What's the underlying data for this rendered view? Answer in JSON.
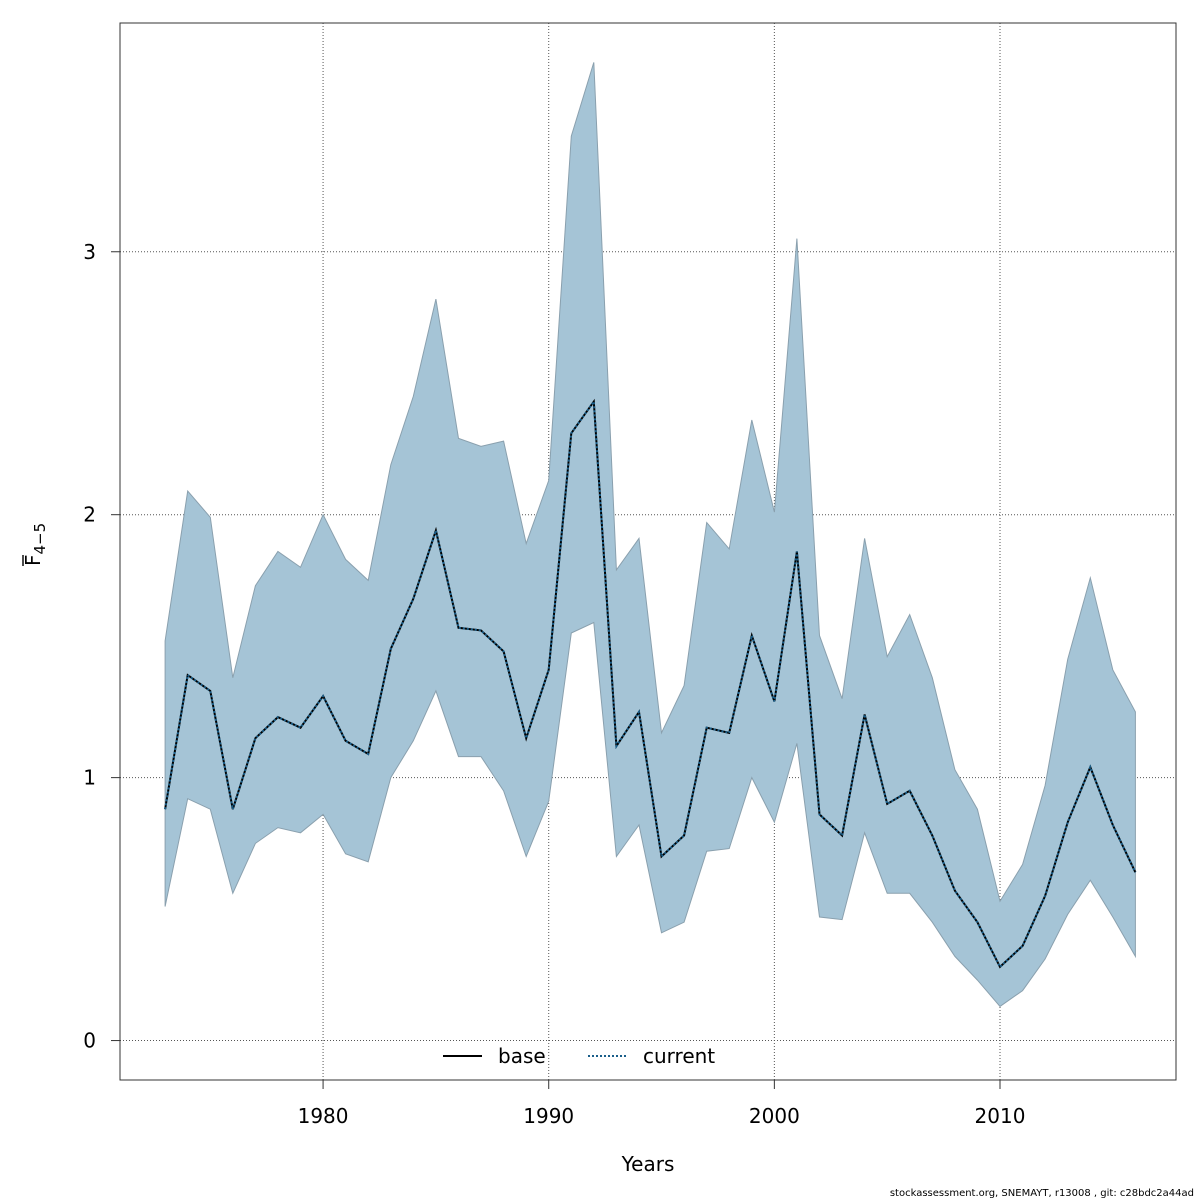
{
  "chart_data": {
    "type": "area",
    "xlabel": "Years",
    "ylabel": {
      "main": "F",
      "subscript": "4−5"
    },
    "xlim": [
      1971,
      2017.8
    ],
    "ylim": [
      -0.15,
      3.87
    ],
    "xticks": [
      1980,
      1990,
      2000,
      2010
    ],
    "yticks": [
      0,
      1,
      2,
      3
    ],
    "grid": true,
    "legend_position": "bottom",
    "legend": [
      {
        "name": "base",
        "style": "solid",
        "color": "#000000"
      },
      {
        "name": "current",
        "style": "dotted",
        "color": "#000000"
      }
    ],
    "x": [
      1973,
      1974,
      1975,
      1976,
      1977,
      1978,
      1979,
      1980,
      1981,
      1982,
      1983,
      1984,
      1985,
      1986,
      1987,
      1988,
      1989,
      1990,
      1991,
      1992,
      1993,
      1994,
      1995,
      1996,
      1997,
      1998,
      1999,
      2000,
      2001,
      2002,
      2003,
      2004,
      2005,
      2006,
      2007,
      2008,
      2009,
      2010,
      2011,
      2012,
      2013,
      2014,
      2015,
      2016
    ],
    "series": [
      {
        "name": "base",
        "values": [
          0.88,
          1.39,
          1.33,
          0.88,
          1.15,
          1.23,
          1.19,
          1.31,
          1.14,
          1.09,
          1.49,
          1.68,
          1.94,
          1.57,
          1.56,
          1.48,
          1.15,
          1.41,
          2.31,
          2.43,
          1.12,
          1.25,
          0.7,
          0.78,
          1.19,
          1.17,
          1.54,
          1.29,
          1.86,
          0.86,
          0.78,
          1.24,
          0.9,
          0.95,
          0.78,
          0.57,
          0.45,
          0.28,
          0.36,
          0.55,
          0.83,
          1.04,
          0.82,
          0.64
        ]
      },
      {
        "name": "current",
        "values": [
          0.88,
          1.39,
          1.33,
          0.88,
          1.15,
          1.23,
          1.19,
          1.31,
          1.14,
          1.09,
          1.49,
          1.68,
          1.94,
          1.57,
          1.56,
          1.48,
          1.15,
          1.41,
          2.31,
          2.43,
          1.12,
          1.25,
          0.7,
          0.78,
          1.19,
          1.17,
          1.54,
          1.29,
          1.86,
          0.86,
          0.78,
          1.24,
          0.9,
          0.95,
          0.78,
          0.57,
          0.45,
          0.28,
          0.36,
          0.55,
          0.83,
          1.04,
          0.82,
          0.64
        ]
      }
    ],
    "band": {
      "upper": [
        1.52,
        2.09,
        1.99,
        1.38,
        1.73,
        1.86,
        1.8,
        2.0,
        1.83,
        1.75,
        2.19,
        2.45,
        2.82,
        2.29,
        2.26,
        2.28,
        1.89,
        2.13,
        3.44,
        3.72,
        1.79,
        1.91,
        1.17,
        1.35,
        1.97,
        1.87,
        2.36,
        2.01,
        3.05,
        1.54,
        1.3,
        1.91,
        1.46,
        1.62,
        1.38,
        1.03,
        0.88,
        0.53,
        0.67,
        0.97,
        1.45,
        1.76,
        1.41,
        1.25
      ],
      "lower": [
        0.51,
        0.92,
        0.88,
        0.56,
        0.75,
        0.81,
        0.79,
        0.86,
        0.71,
        0.68,
        1.0,
        1.14,
        1.33,
        1.08,
        1.08,
        0.95,
        0.7,
        0.91,
        1.55,
        1.59,
        0.7,
        0.82,
        0.41,
        0.45,
        0.72,
        0.73,
        1.0,
        0.83,
        1.13,
        0.47,
        0.46,
        0.79,
        0.56,
        0.56,
        0.45,
        0.32,
        0.23,
        0.13,
        0.19,
        0.31,
        0.48,
        0.61,
        0.47,
        0.32
      ],
      "color": "#a5c4d6",
      "edge_color": "#8aa0ae"
    }
  },
  "footer": "stockassessment.org, SNEMAYT, r13008 , git: c28bdc2a44ad"
}
